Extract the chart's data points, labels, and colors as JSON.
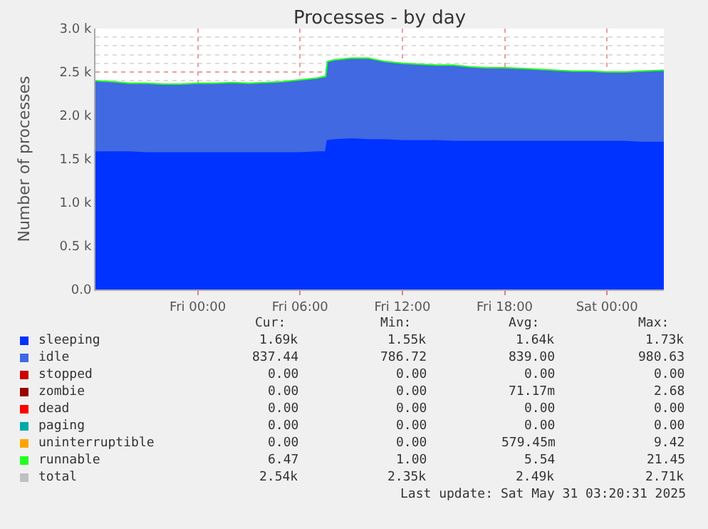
{
  "chart_data": {
    "type": "area",
    "title": "Processes - by day",
    "ylabel": "Number of processes",
    "stacked": true,
    "grid": true,
    "legend": "bottom",
    "x": [
      "2025-05-29T18:00",
      "2025-05-29T19:00",
      "2025-05-29T20:00",
      "2025-05-29T21:00",
      "2025-05-29T22:00",
      "2025-05-29T23:00",
      "2025-05-30T00:00",
      "2025-05-30T01:00",
      "2025-05-30T02:00",
      "2025-05-30T03:00",
      "2025-05-30T04:00",
      "2025-05-30T05:00",
      "2025-05-30T06:00",
      "2025-05-30T07:00",
      "2025-05-30T07:30",
      "2025-05-30T07:36",
      "2025-05-30T08:00",
      "2025-05-30T09:00",
      "2025-05-30T10:00",
      "2025-05-30T11:00",
      "2025-05-30T12:00",
      "2025-05-30T13:00",
      "2025-05-30T14:00",
      "2025-05-30T15:00",
      "2025-05-30T16:00",
      "2025-05-30T17:00",
      "2025-05-30T18:00",
      "2025-05-30T19:00",
      "2025-05-30T20:00",
      "2025-05-30T21:00",
      "2025-05-30T22:00",
      "2025-05-30T23:00",
      "2025-05-31T00:00",
      "2025-05-31T01:00",
      "2025-05-31T02:00",
      "2025-05-31T03:20"
    ],
    "xlim": [
      "2025-05-29T18:00",
      "2025-05-31T03:20"
    ],
    "xticks": [
      {
        "value": "2025-05-30T00:00",
        "label": "Fri 00:00"
      },
      {
        "value": "2025-05-30T06:00",
        "label": "Fri 06:00"
      },
      {
        "value": "2025-05-30T12:00",
        "label": "Fri 12:00"
      },
      {
        "value": "2025-05-30T18:00",
        "label": "Fri 18:00"
      },
      {
        "value": "2025-05-31T00:00",
        "label": "Sat 00:00"
      }
    ],
    "ylim": [
      0,
      3000
    ],
    "yticks": [
      {
        "value": 0,
        "label": "0.0"
      },
      {
        "value": 500,
        "label": "0.5 k"
      },
      {
        "value": 1000,
        "label": "1.0 k"
      },
      {
        "value": 1500,
        "label": "1.5 k"
      },
      {
        "value": 2000,
        "label": "2.0 k"
      },
      {
        "value": 2500,
        "label": "2.5 k"
      },
      {
        "value": 3000,
        "label": "3.0 k"
      }
    ],
    "series": [
      {
        "name": "sleeping",
        "color": "#0033ff",
        "values": [
          1580,
          1580,
          1580,
          1570,
          1570,
          1570,
          1570,
          1570,
          1570,
          1570,
          1570,
          1570,
          1570,
          1580,
          1580,
          1710,
          1720,
          1730,
          1720,
          1720,
          1710,
          1710,
          1710,
          1700,
          1700,
          1700,
          1700,
          1700,
          1700,
          1700,
          1700,
          1700,
          1700,
          1700,
          1690,
          1690
        ]
      },
      {
        "name": "idle",
        "color": "#4169e1",
        "values": [
          810,
          800,
          780,
          790,
          780,
          780,
          790,
          790,
          800,
          790,
          800,
          810,
          830,
          840,
          860,
          900,
          910,
          920,
          930,
          890,
          880,
          870,
          860,
          870,
          850,
          840,
          840,
          830,
          820,
          810,
          800,
          800,
          790,
          790,
          810,
          820
        ]
      },
      {
        "name": "stopped",
        "color": "#cc0000",
        "values": [
          null,
          null,
          null,
          null,
          null,
          null,
          null,
          null,
          null,
          null,
          null,
          null,
          null,
          null,
          null,
          null,
          null,
          null,
          null,
          null,
          null,
          null,
          null,
          null,
          null,
          null,
          null,
          null,
          null,
          null,
          null,
          null,
          null,
          null,
          null,
          null
        ]
      },
      {
        "name": "zombie",
        "color": "#990000",
        "values": [
          null,
          null,
          null,
          null,
          null,
          null,
          null,
          null,
          null,
          null,
          null,
          null,
          null,
          null,
          null,
          null,
          null,
          null,
          null,
          null,
          null,
          null,
          null,
          null,
          null,
          null,
          null,
          null,
          null,
          null,
          null,
          null,
          null,
          null,
          null,
          null
        ]
      },
      {
        "name": "dead",
        "color": "#ff0000",
        "values": [
          null,
          null,
          null,
          null,
          null,
          null,
          null,
          null,
          null,
          null,
          null,
          null,
          null,
          null,
          null,
          null,
          null,
          null,
          null,
          null,
          null,
          null,
          null,
          null,
          null,
          null,
          null,
          null,
          null,
          null,
          null,
          null,
          null,
          null,
          null,
          null
        ]
      },
      {
        "name": "paging",
        "color": "#00aaaa",
        "values": [
          null,
          null,
          null,
          null,
          null,
          null,
          null,
          null,
          null,
          null,
          null,
          null,
          null,
          null,
          null,
          null,
          null,
          null,
          null,
          null,
          null,
          null,
          null,
          null,
          null,
          null,
          null,
          null,
          null,
          null,
          null,
          null,
          null,
          null,
          null,
          null
        ]
      },
      {
        "name": "uninterruptible",
        "color": "#ffa500",
        "values": [
          null,
          null,
          null,
          null,
          null,
          null,
          null,
          null,
          null,
          null,
          null,
          null,
          null,
          null,
          null,
          null,
          null,
          null,
          null,
          null,
          null,
          null,
          null,
          null,
          null,
          null,
          null,
          null,
          null,
          null,
          null,
          null,
          null,
          null,
          null,
          null
        ]
      },
      {
        "name": "runnable",
        "color": "#22ff22",
        "values": [
          10,
          10,
          10,
          10,
          10,
          10,
          10,
          10,
          10,
          10,
          10,
          10,
          10,
          10,
          10,
          10,
          10,
          10,
          10,
          10,
          10,
          10,
          10,
          10,
          10,
          10,
          10,
          10,
          10,
          10,
          10,
          10,
          10,
          10,
          10,
          10
        ]
      },
      {
        "name": "total",
        "color": "#c0c0c0",
        "values": [
          null,
          null,
          null,
          null,
          null,
          null,
          null,
          null,
          null,
          null,
          null,
          null,
          null,
          null,
          null,
          null,
          null,
          null,
          null,
          null,
          null,
          null,
          null,
          null,
          null,
          null,
          null,
          null,
          null,
          null,
          null,
          null,
          null,
          null,
          null,
          null
        ]
      }
    ],
    "annotations": [
      "Cur:",
      "Min:",
      "Avg:",
      "Max:",
      "1.69k",
      "1.55k",
      "1.64k",
      "1.73k",
      "837.44",
      "786.72",
      "839.00",
      "980.63",
      "0.00",
      "0.00",
      "0.00",
      "0.00",
      "0.00",
      "0.00",
      "71.17m",
      "2.68",
      "0.00",
      "0.00",
      "0.00",
      "0.00",
      "0.00",
      "0.00",
      "0.00",
      "0.00",
      "0.00",
      "0.00",
      "579.45m",
      "9.42",
      "6.47",
      "1.00",
      "5.54",
      "21.45",
      "2.54k",
      "2.35k",
      "2.49k",
      "2.71k",
      "Last update: Sat May 31 03:20:31 2025"
    ]
  }
}
